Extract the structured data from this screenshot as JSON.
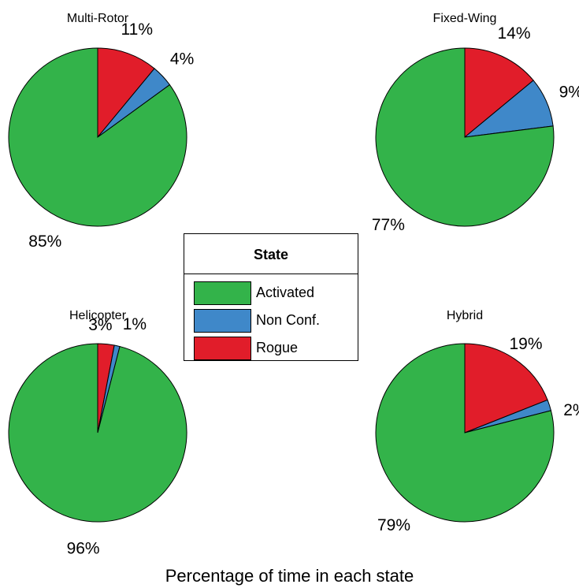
{
  "colors": {
    "Activated": "#33b34a",
    "Non Conf.": "#3f88c9",
    "Rogue": "#e11d2a"
  },
  "chart_data": [
    {
      "type": "pie",
      "title": "Multi-Rotor",
      "labels": [
        "Rogue",
        "Non Conf.",
        "Activated"
      ],
      "values": [
        11,
        4,
        85
      ],
      "value_labels": [
        "11%",
        "4%",
        "85%"
      ]
    },
    {
      "type": "pie",
      "title": "Fixed-Wing",
      "labels": [
        "Rogue",
        "Non Conf.",
        "Activated"
      ],
      "values": [
        14,
        9,
        77
      ],
      "value_labels": [
        "14%",
        "9%",
        "77%"
      ]
    },
    {
      "type": "pie",
      "title": "Helicopter",
      "labels": [
        "Rogue",
        "Non Conf.",
        "Activated"
      ],
      "values": [
        3,
        1,
        96
      ],
      "value_labels": [
        "3%",
        "1%",
        "96%"
      ]
    },
    {
      "type": "pie",
      "title": "Hybrid",
      "labels": [
        "Rogue",
        "Non Conf.",
        "Activated"
      ],
      "values": [
        19,
        2,
        79
      ],
      "value_labels": [
        "19%",
        "2%",
        "79%"
      ]
    }
  ],
  "legend": {
    "title": "State",
    "placement": "center",
    "items": [
      "Activated",
      "Non Conf.",
      "Rogue"
    ]
  },
  "caption": "Percentage of time in each state"
}
